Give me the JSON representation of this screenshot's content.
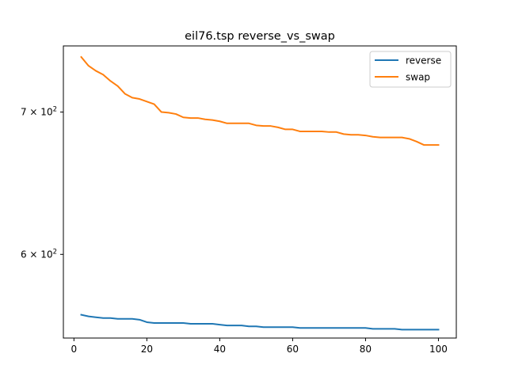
{
  "chart_data": {
    "type": "line",
    "title": "eil76.tsp  reverse_vs_swap",
    "xlabel": "",
    "ylabel": "",
    "xlim": [
      -2.9,
      104.9
    ],
    "ylim": [
      548,
      752
    ],
    "yscale": "log",
    "xticks": [
      0,
      20,
      40,
      60,
      80,
      100
    ],
    "xtick_labels": [
      "0",
      "20",
      "40",
      "60",
      "80",
      "100"
    ],
    "yticks": [
      600,
      700
    ],
    "ytick_labels": [
      "6 × 10²",
      "7 × 10²"
    ],
    "grid": false,
    "legend": "top-right",
    "series": [
      {
        "name": "reverse",
        "color": "#1f77b4",
        "x": [
          2,
          4,
          6,
          8,
          10,
          12,
          14,
          16,
          18,
          20,
          22,
          24,
          26,
          28,
          30,
          32,
          34,
          36,
          38,
          40,
          42,
          44,
          46,
          48,
          50,
          52,
          54,
          56,
          58,
          60,
          62,
          64,
          66,
          68,
          70,
          72,
          74,
          76,
          78,
          80,
          82,
          84,
          86,
          88,
          90,
          92,
          94,
          96,
          98,
          100
        ],
        "values": [
          562,
          561,
          560.5,
          560,
          560,
          559.5,
          559.5,
          559.5,
          559,
          557.5,
          557,
          557,
          557,
          557,
          557,
          556.5,
          556.5,
          556.5,
          556.5,
          556,
          555.5,
          555.5,
          555.5,
          555,
          555,
          554.5,
          554.5,
          554.5,
          554.5,
          554.5,
          554,
          554,
          554,
          554,
          554,
          554,
          554,
          554,
          554,
          554,
          553.5,
          553.5,
          553.5,
          553.5,
          553,
          553,
          553,
          553,
          553,
          553
        ]
      },
      {
        "name": "swap",
        "color": "#ff7f0e",
        "x": [
          2,
          4,
          6,
          8,
          10,
          12,
          14,
          16,
          18,
          20,
          22,
          24,
          26,
          28,
          30,
          32,
          34,
          36,
          38,
          40,
          42,
          44,
          46,
          48,
          50,
          52,
          54,
          56,
          58,
          60,
          62,
          64,
          66,
          68,
          70,
          72,
          74,
          76,
          78,
          80,
          82,
          84,
          86,
          88,
          90,
          92,
          94,
          96,
          98,
          100
        ],
        "values": [
          743,
          736,
          732,
          729,
          724,
          720,
          714,
          711,
          710,
          708,
          706,
          700,
          699.5,
          698.5,
          696,
          695.5,
          695.5,
          694.5,
          694,
          693,
          691.5,
          691.5,
          691.5,
          691.5,
          690,
          689.5,
          689.5,
          688.5,
          687,
          687,
          685.5,
          685.5,
          685.5,
          685.5,
          685,
          685,
          683.5,
          683,
          683,
          682.5,
          681.5,
          681,
          681,
          681,
          681,
          680,
          678,
          675.5,
          675.5,
          675.5
        ]
      }
    ]
  }
}
